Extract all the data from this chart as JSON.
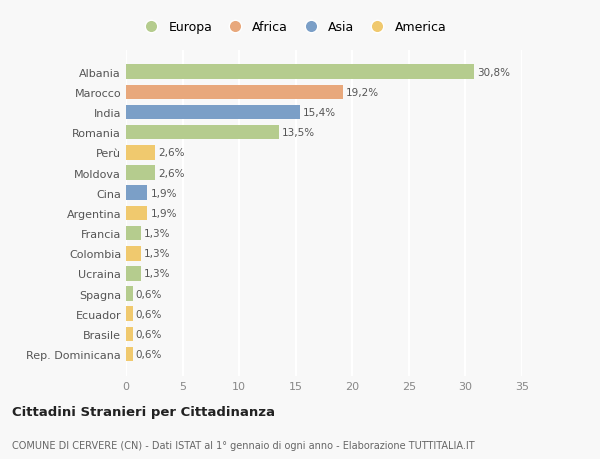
{
  "countries": [
    "Albania",
    "Marocco",
    "India",
    "Romania",
    "Perù",
    "Moldova",
    "Cina",
    "Argentina",
    "Francia",
    "Colombia",
    "Ucraina",
    "Spagna",
    "Ecuador",
    "Brasile",
    "Rep. Dominicana"
  ],
  "values": [
    30.8,
    19.2,
    15.4,
    13.5,
    2.6,
    2.6,
    1.9,
    1.9,
    1.3,
    1.3,
    1.3,
    0.6,
    0.6,
    0.6,
    0.6
  ],
  "labels": [
    "30,8%",
    "19,2%",
    "15,4%",
    "13,5%",
    "2,6%",
    "2,6%",
    "1,9%",
    "1,9%",
    "1,3%",
    "1,3%",
    "1,3%",
    "0,6%",
    "0,6%",
    "0,6%",
    "0,6%"
  ],
  "continents": [
    "Europa",
    "Africa",
    "Asia",
    "Europa",
    "America",
    "Europa",
    "Asia",
    "America",
    "Europa",
    "America",
    "Europa",
    "Europa",
    "America",
    "America",
    "America"
  ],
  "continent_colors": {
    "Europa": "#b5cc8e",
    "Africa": "#e8a87c",
    "Asia": "#7b9fc7",
    "America": "#f0c96e"
  },
  "legend_order": [
    "Europa",
    "Africa",
    "Asia",
    "America"
  ],
  "title": "Cittadini Stranieri per Cittadinanza",
  "subtitle": "COMUNE DI CERVERE (CN) - Dati ISTAT al 1° gennaio di ogni anno - Elaborazione TUTTITALIA.IT",
  "xlim": [
    0,
    35
  ],
  "xticks": [
    0,
    5,
    10,
    15,
    20,
    25,
    30,
    35
  ],
  "bg_color": "#f8f8f8",
  "grid_color": "#ffffff",
  "bar_height": 0.72
}
